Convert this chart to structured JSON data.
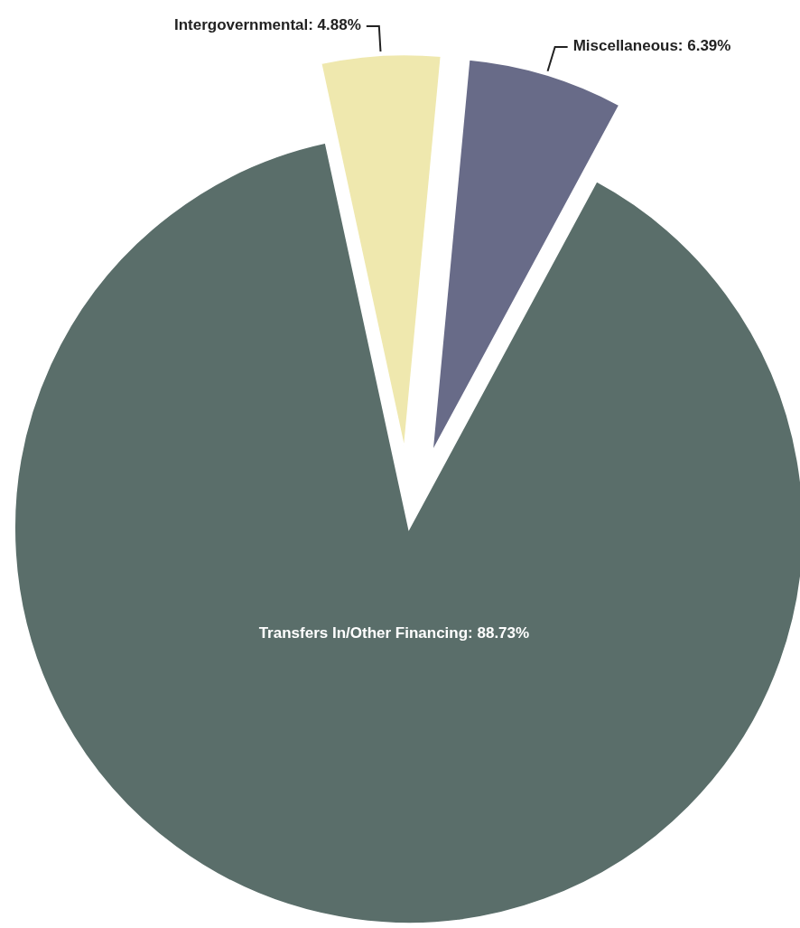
{
  "chart_data": {
    "type": "pie",
    "categories": [
      "Intergovernmental",
      "Miscellaneous",
      "Transfers In/Other Financing"
    ],
    "values": [
      4.88,
      6.39,
      88.73
    ],
    "colors": [
      "#efe8ae",
      "#686b88",
      "#5a6e6a"
    ],
    "value_labels": [
      "4.88%",
      "6.39%",
      "88.73%"
    ]
  }
}
